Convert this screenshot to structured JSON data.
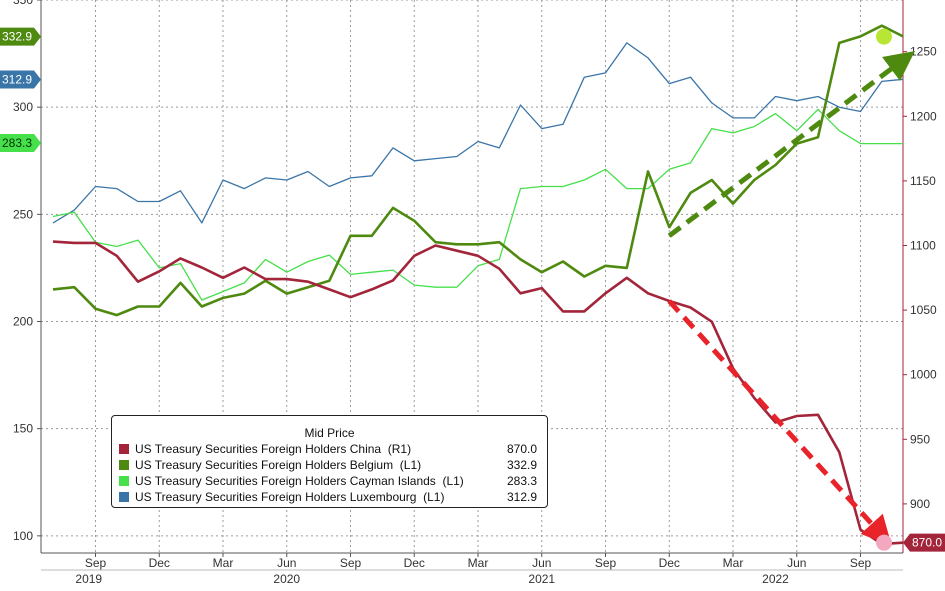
{
  "chart_data": {
    "type": "line",
    "legend": {
      "title": "Mid Price",
      "placement": "bottom-left",
      "entries": [
        {
          "name": "US Treasury Securities Foreign Holders China  (R1)",
          "value": "870.0",
          "color": "#a3253a"
        },
        {
          "name": "US Treasury Securities Foreign Holders Belgium  (L1)",
          "value": "332.9",
          "color": "#4f8a10"
        },
        {
          "name": "US Treasury Securities Foreign Holders Cayman Islands  (L1)",
          "value": "283.3",
          "color": "#45e04a"
        },
        {
          "name": "US Treasury Securities Foreign Holders Luxembourg  (L1)",
          "value": "312.9",
          "color": "#3a75a8"
        }
      ]
    },
    "x_axis": {
      "month_ticks": [
        "Sep",
        "Dec",
        "Mar",
        "Jun",
        "Sep",
        "Dec",
        "Mar",
        "Jun",
        "Sep",
        "Dec",
        "Mar",
        "Jun",
        "Sep"
      ],
      "year_ticks": [
        "2019",
        "2020",
        "2021",
        "2022"
      ],
      "range": [
        "2019-07",
        "2022-11"
      ]
    },
    "y_left": {
      "ticks": [
        "100",
        "150",
        "200",
        "250",
        "300",
        "350"
      ],
      "ylim": [
        92,
        350
      ]
    },
    "y_right": {
      "ticks": [
        "900",
        "950",
        "1000",
        "1050",
        "1100",
        "1150",
        "1200",
        "1250"
      ],
      "ylim": [
        862,
        1290
      ]
    },
    "gridlines": "dotted",
    "months": [
      "2019-07",
      "2019-08",
      "2019-09",
      "2019-10",
      "2019-11",
      "2019-12",
      "2020-01",
      "2020-02",
      "2020-03",
      "2020-04",
      "2020-05",
      "2020-06",
      "2020-07",
      "2020-08",
      "2020-09",
      "2020-10",
      "2020-11",
      "2020-12",
      "2021-01",
      "2021-02",
      "2021-03",
      "2021-04",
      "2021-05",
      "2021-06",
      "2021-07",
      "2021-08",
      "2021-09",
      "2021-10",
      "2021-11",
      "2021-12",
      "2022-01",
      "2022-02",
      "2022-03",
      "2022-04",
      "2022-05",
      "2022-06",
      "2022-07",
      "2022-08",
      "2022-09",
      "2022-10",
      "2022-11"
    ],
    "series": [
      {
        "name": "US Treasury Securities Foreign Holders China  (R1)",
        "axis": "right",
        "color": "#a3253a",
        "last_value": "870.0",
        "values": [
          1103,
          1102,
          1102,
          1092,
          1072,
          1080,
          1090,
          1083,
          1075,
          1083,
          1074,
          1074,
          1072,
          1066,
          1060,
          1066,
          1073,
          1092,
          1100,
          1096,
          1092,
          1082,
          1063,
          1067,
          1049,
          1049,
          1063,
          1075,
          1063,
          1057,
          1052,
          1041,
          1005,
          982,
          963,
          968,
          969,
          940,
          880,
          869,
          870
        ]
      },
      {
        "name": "US Treasury Securities Foreign Holders Belgium  (L1)",
        "axis": "left",
        "color": "#4f8a10",
        "last_value": "332.9",
        "values": [
          215,
          216,
          206,
          203,
          207,
          207,
          218,
          207,
          211,
          213,
          219,
          213,
          216,
          219,
          240,
          240,
          253,
          247,
          237,
          236,
          236,
          237,
          229,
          223,
          228,
          221,
          226,
          225,
          270,
          244,
          260,
          266,
          255,
          266,
          273,
          283,
          286,
          330,
          333,
          338,
          333
        ]
      },
      {
        "name": "US Treasury Securities Foreign Holders Cayman Islands  (L1)",
        "axis": "left",
        "color": "#45e04a",
        "last_value": "283.3",
        "values": [
          249,
          251,
          237,
          235,
          238,
          225,
          227,
          210,
          214,
          218,
          229,
          223,
          228,
          231,
          222,
          223,
          224,
          217,
          216,
          216,
          226,
          229,
          262,
          263,
          263,
          266,
          271,
          262,
          262,
          271,
          274,
          290,
          288,
          291,
          297,
          289,
          299,
          289,
          283,
          283,
          283
        ]
      },
      {
        "name": "US Treasury Securities Foreign Holders Luxembourg  (L1)",
        "axis": "left",
        "color": "#3a75a8",
        "last_value": "312.9",
        "values": [
          246,
          252,
          263,
          262,
          256,
          256,
          261,
          246,
          266,
          262,
          267,
          266,
          270,
          263,
          267,
          268,
          281,
          275,
          276,
          277,
          284,
          281,
          301,
          290,
          292,
          314,
          316,
          330,
          323,
          311,
          314,
          302,
          295,
          295,
          305,
          303,
          305,
          300,
          298,
          312,
          313
        ]
      }
    ],
    "annotations": [
      {
        "type": "arrow",
        "style": "dashed",
        "color": "#4f8a10",
        "from_month": "2021-12",
        "from_value_left": 240,
        "to_month": "2022-11",
        "to_value_left": 322
      },
      {
        "type": "arrow",
        "style": "dashed",
        "color": "#e8232a",
        "from_month": "2021-12",
        "from_value_right": 1057,
        "to_month": "2022-10",
        "to_value_right": 876
      }
    ],
    "value_tags": [
      {
        "text": "332.9",
        "axis": "left",
        "value": 332.9,
        "color": "#4f8a10",
        "text_color": "#ffffff"
      },
      {
        "text": "312.9",
        "axis": "left",
        "value": 312.9,
        "color": "#3a75a8",
        "text_color": "#ffffff"
      },
      {
        "text": "283.3",
        "axis": "left",
        "value": 283.3,
        "color": "#45e04a",
        "text_color": "#003300"
      },
      {
        "text": "870.0",
        "axis": "right",
        "value": 870.0,
        "color": "#a3253a",
        "text_color": "#ffffff"
      }
    ],
    "end_markers": [
      {
        "axis": "left",
        "value": 332.9,
        "color": "#b8e633"
      },
      {
        "axis": "right",
        "value": 870.0,
        "color": "#f4a8c0"
      }
    ]
  }
}
